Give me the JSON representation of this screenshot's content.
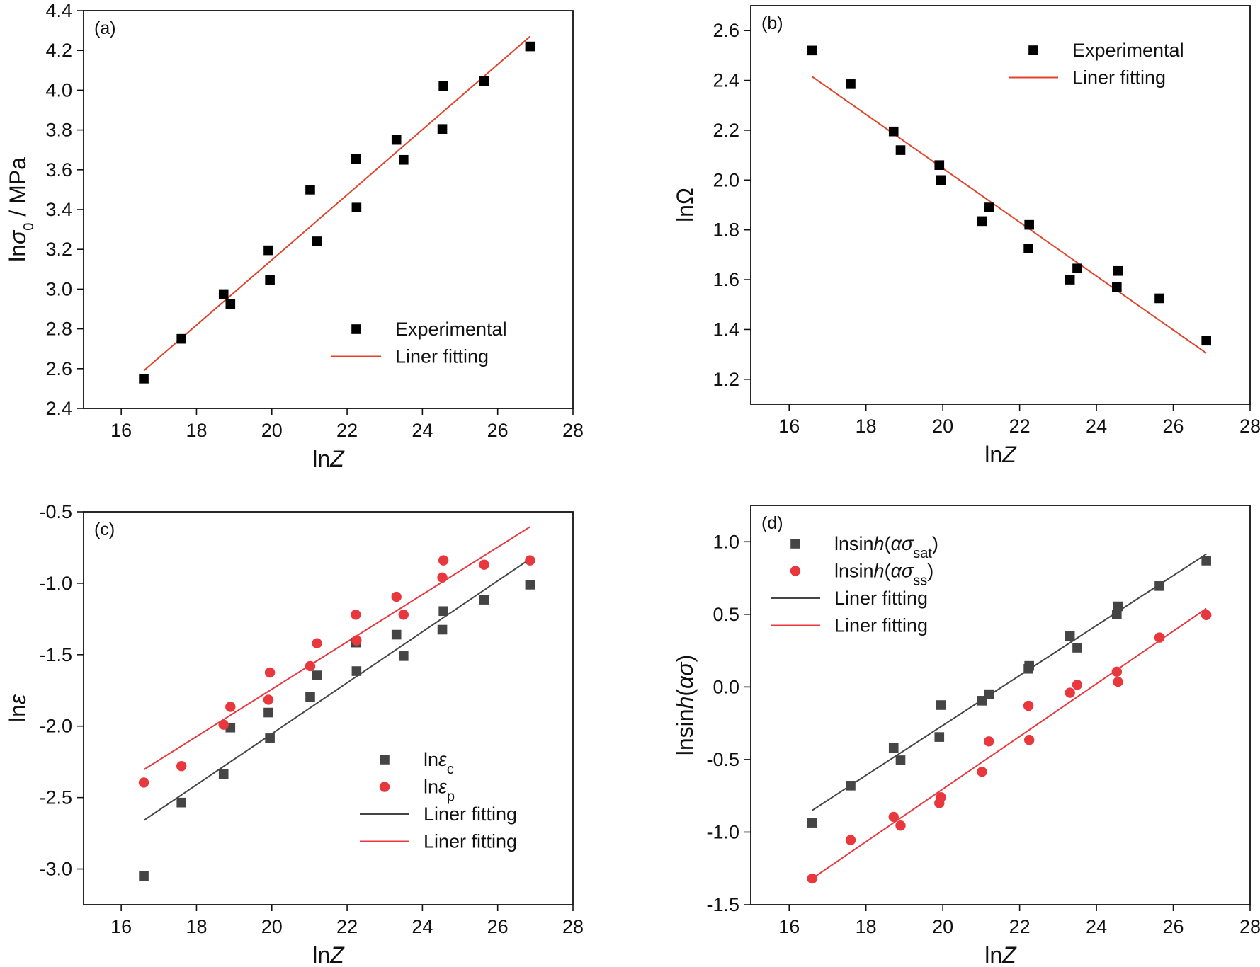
{
  "chart_data": [
    {
      "type": "scatter",
      "panel_label": "(a)",
      "xlabel": "lnZ",
      "ylabel": "lnσ0 / MPa",
      "xlim": [
        15,
        28
      ],
      "ylim": [
        2.4,
        4.4
      ],
      "xticks": [
        16,
        18,
        20,
        22,
        24,
        26,
        28
      ],
      "yticks": [
        2.4,
        2.6,
        2.8,
        3.0,
        3.2,
        3.4,
        3.6,
        3.8,
        4.0,
        4.2,
        4.4
      ],
      "y_decimals": 1,
      "legend_position": "bottom-right",
      "series": [
        {
          "name": "Experimental",
          "marker": "square",
          "color": "#000000",
          "x": [
            16.6,
            17.6,
            18.72,
            18.9,
            19.91,
            19.95,
            21.02,
            21.2,
            22.23,
            22.25,
            23.31,
            23.5,
            24.53,
            24.56,
            25.64,
            26.86
          ],
          "y": [
            2.55,
            2.75,
            2.975,
            2.925,
            3.195,
            3.045,
            3.5,
            3.24,
            3.655,
            3.41,
            3.75,
            3.65,
            3.805,
            4.02,
            4.045,
            4.22
          ]
        },
        {
          "name": "Liner fitting",
          "style": "line",
          "color": "#e0432a",
          "x": [
            16.6,
            26.86
          ],
          "y": [
            2.59,
            4.27
          ]
        }
      ]
    },
    {
      "type": "scatter",
      "panel_label": "(b)",
      "xlabel": "lnZ",
      "ylabel": "lnΩ",
      "xlim": [
        15,
        28
      ],
      "ylim": [
        1.1,
        2.7
      ],
      "xticks": [
        16,
        18,
        20,
        22,
        24,
        26,
        28
      ],
      "yticks": [
        1.2,
        1.4,
        1.6,
        1.8,
        2.0,
        2.2,
        2.4,
        2.6
      ],
      "y_decimals": 1,
      "legend_position": "top-right",
      "series": [
        {
          "name": "Experimental",
          "marker": "square",
          "color": "#000000",
          "x": [
            16.6,
            17.6,
            18.72,
            18.9,
            19.91,
            19.95,
            21.02,
            21.2,
            22.23,
            22.25,
            23.31,
            23.5,
            24.53,
            24.56,
            25.64,
            26.86
          ],
          "y": [
            2.52,
            2.385,
            2.195,
            2.12,
            2.06,
            2.0,
            1.835,
            1.89,
            1.725,
            1.82,
            1.6,
            1.645,
            1.57,
            1.635,
            1.525,
            1.355
          ]
        },
        {
          "name": "Liner fitting",
          "style": "line",
          "color": "#e0432a",
          "x": [
            16.6,
            26.86
          ],
          "y": [
            2.415,
            1.305
          ]
        }
      ]
    },
    {
      "type": "scatter",
      "panel_label": "(c)",
      "xlabel": "lnZ",
      "ylabel": "lnε",
      "xlim": [
        15,
        28
      ],
      "ylim": [
        -3.25,
        -0.5
      ],
      "xticks": [
        16,
        18,
        20,
        22,
        24,
        26,
        28
      ],
      "yticks": [
        -3.0,
        -2.5,
        -2.0,
        -1.5,
        -1.0,
        -0.5
      ],
      "y_decimals": 1,
      "legend_position": "bottom-right",
      "series": [
        {
          "name": "lnε",
          "name_subscript": "c",
          "marker": "square",
          "color": "#454545",
          "x": [
            16.6,
            17.6,
            18.72,
            18.9,
            19.91,
            19.95,
            21.02,
            21.2,
            22.23,
            22.25,
            23.31,
            23.5,
            24.53,
            24.56,
            25.64,
            26.86
          ],
          "y": [
            -3.05,
            -2.535,
            -2.335,
            -2.01,
            -1.905,
            -2.085,
            -1.795,
            -1.645,
            -1.415,
            -1.615,
            -1.36,
            -1.51,
            -1.325,
            -1.195,
            -1.115,
            -1.01
          ]
        },
        {
          "name": "lnε",
          "name_subscript": "p",
          "marker": "circle",
          "color": "#e8383e",
          "x": [
            16.6,
            17.6,
            18.72,
            18.9,
            19.91,
            19.95,
            21.02,
            21.2,
            22.23,
            22.25,
            23.31,
            23.5,
            24.53,
            24.56,
            25.64,
            26.86
          ],
          "y": [
            -2.395,
            -2.28,
            -1.99,
            -1.865,
            -1.815,
            -1.625,
            -1.58,
            -1.42,
            -1.22,
            -1.4,
            -1.095,
            -1.22,
            -0.96,
            -0.84,
            -0.87,
            -0.84
          ]
        },
        {
          "name": "Liner fitting",
          "style": "line",
          "color": "#454545",
          "x": [
            16.6,
            26.86
          ],
          "y": [
            -2.66,
            -0.83
          ]
        },
        {
          "name": "Liner fitting",
          "style": "line",
          "color": "#e8383e",
          "x": [
            16.6,
            26.86
          ],
          "y": [
            -2.305,
            -0.605
          ]
        }
      ]
    },
    {
      "type": "scatter",
      "panel_label": "(d)",
      "xlabel": "lnZ",
      "ylabel": "lnsinh(ασ)",
      "xlim": [
        15,
        28
      ],
      "ylim": [
        -1.5,
        1.25
      ],
      "xticks": [
        16,
        18,
        20,
        22,
        24,
        26,
        28
      ],
      "yticks": [
        -1.5,
        -1.0,
        -0.5,
        0.0,
        0.5,
        1.0
      ],
      "y_decimals": 1,
      "legend_position": "top-left",
      "series": [
        {
          "name": "lnsinh(ασ",
          "name_subscript": "sat",
          "name_suffix": ")",
          "marker": "square",
          "color": "#454545",
          "x": [
            16.6,
            17.6,
            18.72,
            18.9,
            19.91,
            19.95,
            21.02,
            21.2,
            22.23,
            22.25,
            23.31,
            23.5,
            24.53,
            24.56,
            25.64,
            26.86
          ],
          "y": [
            -0.935,
            -0.68,
            -0.42,
            -0.505,
            -0.345,
            -0.125,
            -0.095,
            -0.05,
            0.125,
            0.145,
            0.35,
            0.27,
            0.5,
            0.555,
            0.695,
            0.87
          ]
        },
        {
          "name": "lnsinh(ασ",
          "name_subscript": "ss",
          "name_suffix": ")",
          "marker": "circle",
          "color": "#e8383e",
          "x": [
            16.6,
            17.6,
            18.72,
            18.9,
            19.91,
            19.95,
            21.02,
            21.2,
            22.23,
            22.25,
            23.31,
            23.5,
            24.53,
            24.56,
            25.64,
            26.86
          ],
          "y": [
            -1.32,
            -1.055,
            -0.895,
            -0.955,
            -0.8,
            -0.76,
            -0.585,
            -0.375,
            -0.13,
            -0.365,
            -0.04,
            0.015,
            0.105,
            0.035,
            0.34,
            0.495
          ]
        },
        {
          "name": "Liner fitting",
          "style": "line",
          "color": "#454545",
          "x": [
            16.6,
            26.86
          ],
          "y": [
            -0.85,
            0.915
          ]
        },
        {
          "name": "Liner fitting",
          "style": "line",
          "color": "#e8383e",
          "x": [
            16.6,
            26.86
          ],
          "y": [
            -1.32,
            0.54
          ]
        }
      ]
    }
  ]
}
